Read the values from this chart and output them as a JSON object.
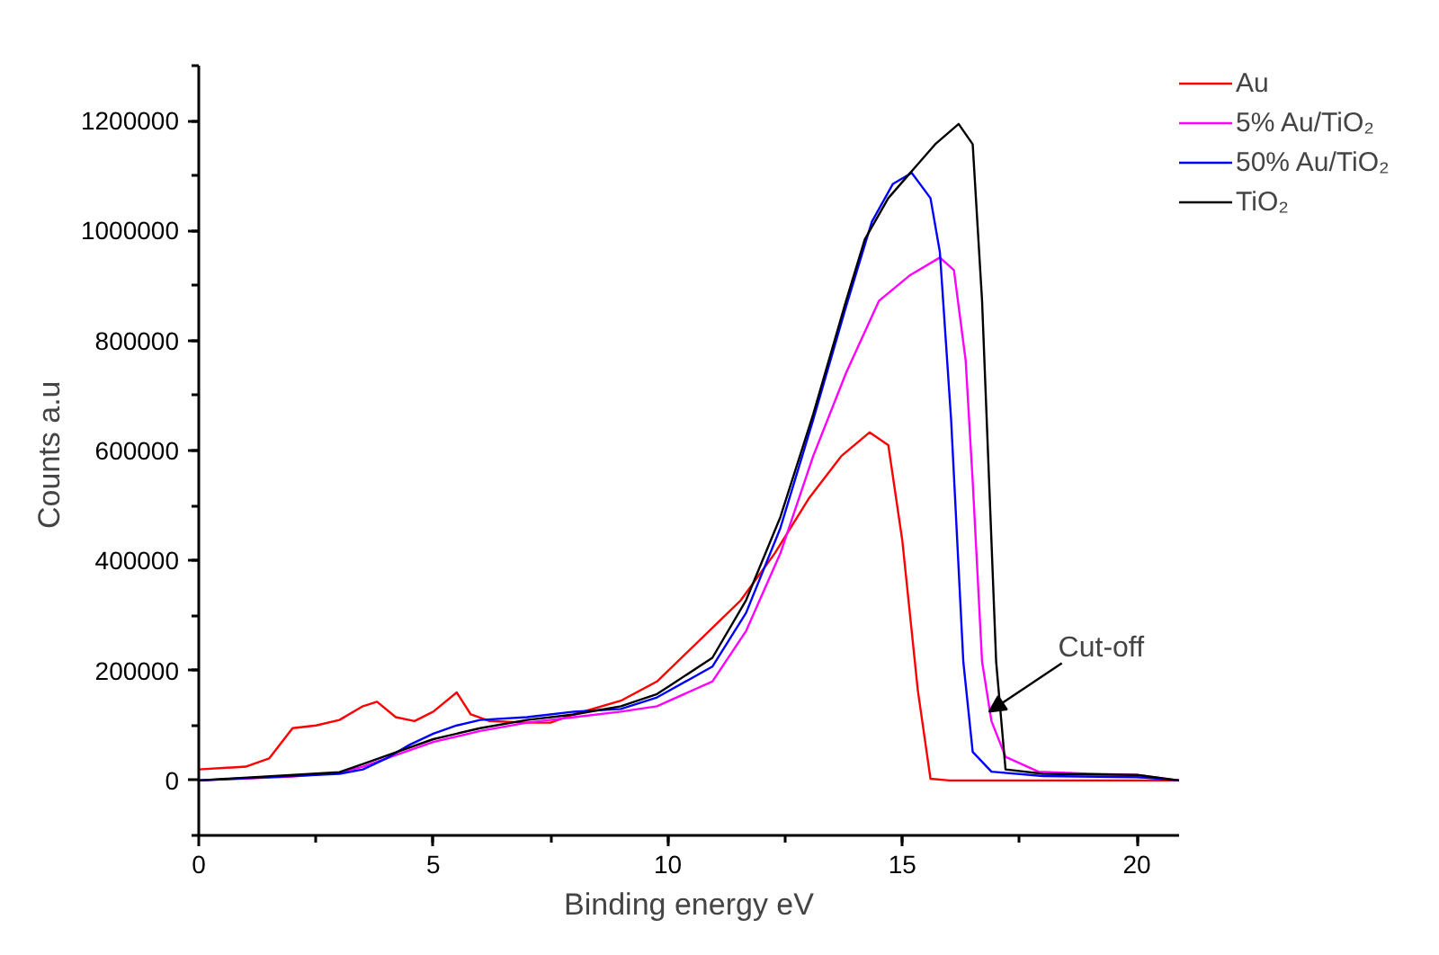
{
  "chart_data": {
    "type": "line",
    "xlabel": "Binding energy eV",
    "ylabel": "Counts  a.u",
    "xlim": [
      0,
      20.9
    ],
    "ylim": [
      -100000,
      1300000
    ],
    "xticks": [
      0,
      5,
      10,
      15,
      20
    ],
    "yticks": [
      0,
      200000,
      400000,
      600000,
      800000,
      1000000,
      1200000
    ],
    "grid": false,
    "legend": "top right",
    "marker": "none",
    "line_style": "solid",
    "annotations": [
      {
        "text": "Cut-off",
        "x": 16.85,
        "y": 125000
      }
    ],
    "series": [
      {
        "name": "Au",
        "color": "#ff0000",
        "x": [
          0,
          1,
          1.5,
          2,
          2.5,
          3,
          3.5,
          3.8,
          4.2,
          4.6,
          5,
          5.5,
          5.8,
          6.2,
          7,
          7.5,
          8,
          9,
          9.77,
          11.56,
          12.28,
          13,
          13.7,
          14.3,
          14.7,
          15,
          15.33,
          15.6,
          16,
          18,
          20,
          20.9
        ],
        "values": [
          20000,
          25000,
          40000,
          95000,
          100000,
          110000,
          135000,
          143000,
          115000,
          108000,
          125000,
          160000,
          120000,
          108000,
          105000,
          105000,
          120000,
          145000,
          180000,
          328000,
          413000,
          512000,
          590000,
          633000,
          610000,
          436000,
          164000,
          3000,
          0,
          0,
          0,
          0
        ]
      },
      {
        "name": "5% Au/TiO₂",
        "color": "#ff00ff",
        "x": [
          0,
          2,
          3,
          3.5,
          4,
          5,
          6,
          7,
          8,
          9,
          9.77,
          10.95,
          11.67,
          12.4,
          13.1,
          13.8,
          14.5,
          15.15,
          15.8,
          16.1,
          16.35,
          16.5,
          16.7,
          16.9,
          17.2,
          17.9,
          19,
          20,
          20.9
        ],
        "values": [
          0,
          7000,
          14000,
          25000,
          40000,
          70000,
          90000,
          105000,
          115000,
          125000,
          135000,
          180000,
          272000,
          413000,
          590000,
          741000,
          872000,
          918000,
          951000,
          928000,
          764000,
          544000,
          216000,
          108000,
          43000,
          16000,
          12000,
          10000,
          0
        ]
      },
      {
        "name": "50% Au/TiO₂",
        "color": "#0000ff",
        "x": [
          0,
          3,
          3.5,
          4,
          4.5,
          5,
          5.5,
          6,
          7,
          8,
          9,
          9.77,
          10.95,
          11.67,
          12.4,
          13.1,
          13.8,
          14.35,
          14.8,
          15.2,
          15.6,
          15.8,
          16.04,
          16.3,
          16.5,
          16.9,
          18,
          20,
          20.9
        ],
        "values": [
          0,
          12000,
          20000,
          40000,
          65000,
          85000,
          100000,
          110000,
          115000,
          125000,
          130000,
          151000,
          207000,
          305000,
          459000,
          656000,
          862000,
          1016000,
          1085000,
          1105000,
          1059000,
          961000,
          656000,
          216000,
          52000,
          16000,
          8000,
          6000,
          0
        ]
      },
      {
        "name": "TiO₂",
        "color": "#000000",
        "x": [
          0,
          3,
          3.5,
          4,
          5,
          6,
          7,
          8,
          9,
          9.77,
          10.95,
          11.67,
          12.4,
          13.1,
          13.8,
          14.2,
          14.7,
          15.2,
          15.7,
          16.2,
          16.5,
          16.7,
          17,
          17.2,
          18,
          20,
          20.9
        ],
        "values": [
          0,
          15000,
          30000,
          45000,
          75000,
          95000,
          110000,
          120000,
          135000,
          157000,
          223000,
          328000,
          479000,
          666000,
          872000,
          984000,
          1059000,
          1108000,
          1157000,
          1194000,
          1157000,
          872000,
          216000,
          20000,
          12000,
          10000,
          0
        ]
      }
    ]
  }
}
